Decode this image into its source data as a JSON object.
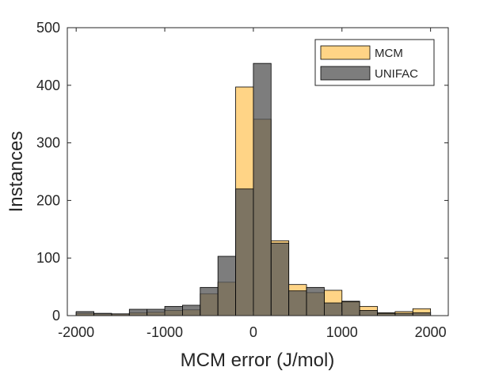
{
  "chart_data": {
    "type": "bar",
    "title": "",
    "xlabel": "MCM error (J/mol)",
    "ylabel": "Instances",
    "xlim": [
      -2100,
      2200
    ],
    "ylim": [
      0,
      500
    ],
    "xticks": [
      -2000,
      -1000,
      0,
      1000,
      2000
    ],
    "yticks": [
      0,
      100,
      200,
      300,
      400,
      500
    ],
    "bin_width": 200,
    "bin_centers": [
      -1900,
      -1700,
      -1500,
      -1300,
      -1100,
      -900,
      -700,
      -500,
      -300,
      -100,
      100,
      300,
      500,
      700,
      900,
      1100,
      1300,
      1500,
      1700,
      1900
    ],
    "series": [
      {
        "name": "MCM",
        "color": "#ffd27f",
        "opacity": 0.95,
        "values": [
          4,
          3,
          3,
          5,
          6,
          9,
          10,
          38,
          58,
          397,
          341,
          130,
          54,
          40,
          44,
          25,
          16,
          5,
          7,
          12
        ]
      },
      {
        "name": "UNIFAC",
        "color": "#595959",
        "opacity": 0.78,
        "values": [
          7,
          4,
          3,
          11,
          11,
          16,
          18,
          49,
          103,
          220,
          438,
          126,
          43,
          49,
          22,
          24,
          9,
          4,
          4,
          5
        ]
      }
    ],
    "legend": "top-right",
    "grid": false,
    "box": true
  }
}
